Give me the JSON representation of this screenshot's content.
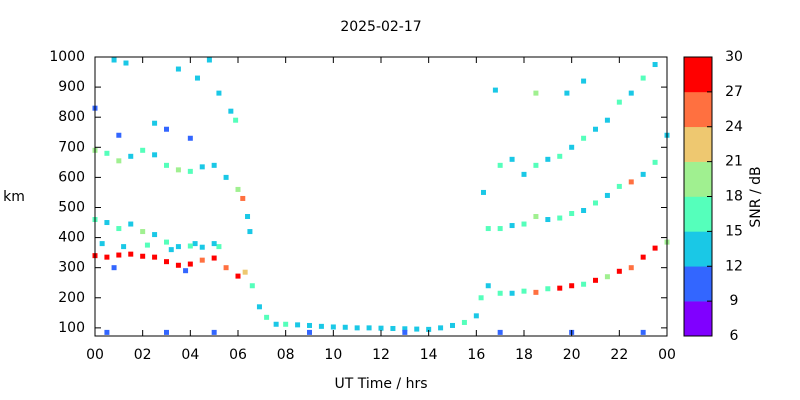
{
  "chart_data": {
    "type": "scatter",
    "title": "2025-02-17",
    "xlabel": "UT Time / hrs",
    "ylabel": "km",
    "xlim": [
      0,
      24
    ],
    "xticks": [
      {
        "value": 0,
        "label": "00"
      },
      {
        "value": 2,
        "label": "02"
      },
      {
        "value": 4,
        "label": "04"
      },
      {
        "value": 6,
        "label": "06"
      },
      {
        "value": 8,
        "label": "08"
      },
      10,
      12,
      14,
      16,
      18,
      20,
      22,
      {
        "value": 24,
        "label": "00"
      }
    ],
    "ylim": [
      73,
      1000
    ],
    "yticks": [
      100,
      200,
      300,
      400,
      500,
      600,
      700,
      800,
      900,
      1000
    ],
    "colorbar": {
      "label": "SNR / dB",
      "lim": [
        6,
        30
      ],
      "ticks": [
        6,
        9,
        12,
        15,
        18,
        21,
        24,
        27,
        30
      ],
      "colors": [
        "#8000ff",
        "#3366ff",
        "#1ac8e6",
        "#55ffbb",
        "#a0f090",
        "#eec870",
        "#ff7040",
        "#ff0000"
      ]
    },
    "x": [
      0,
      0.5,
      1,
      1.5,
      2,
      2.5,
      3,
      3.5,
      4,
      4.5,
      5,
      5.5,
      6,
      6.3,
      6.6,
      6.9,
      7.2,
      7.6,
      0.3,
      1.2,
      2.2,
      3.2,
      4.2,
      5.2,
      0.8,
      3.8,
      0,
      0.5,
      1,
      1.5,
      2,
      2.5,
      3,
      3.5,
      4,
      4.5,
      5,
      0,
      0.5,
      1,
      1.5,
      2,
      2.5,
      3,
      3.5,
      4,
      4.5,
      5,
      5.5,
      6,
      6.2,
      6.5,
      6.4,
      0.8,
      1.3,
      2.5,
      3,
      3.5,
      4.3,
      4.8,
      5.2,
      5.7,
      5.9,
      4,
      1,
      0,
      8,
      8.5,
      9,
      9.5,
      10,
      10.5,
      11,
      11.5,
      12,
      12.5,
      13,
      13.5,
      14,
      14.5,
      15,
      15.5,
      0.5,
      3,
      5,
      9,
      13,
      17,
      20,
      23,
      16,
      16.2,
      16.5,
      17,
      17.5,
      18,
      18.5,
      19,
      19.5,
      20,
      20.5,
      21,
      21.5,
      22,
      22.5,
      23,
      23.5,
      24,
      16.3,
      16.5,
      17,
      17.5,
      18,
      18.5,
      19,
      19.5,
      20,
      20.5,
      21,
      21.5,
      22,
      22.5,
      23,
      23.5,
      24,
      16.8,
      17,
      17.5,
      18,
      18.5,
      19,
      19.5,
      20,
      20.5,
      21,
      21.5,
      22,
      22.5,
      23,
      23.5,
      18.5,
      19.8,
      20.5
    ],
    "y": [
      340,
      335,
      342,
      345,
      338,
      335,
      320,
      308,
      312,
      325,
      332,
      300,
      272,
      285,
      240,
      170,
      135,
      112,
      380,
      370,
      375,
      360,
      380,
      370,
      300,
      290,
      460,
      450,
      430,
      445,
      420,
      410,
      385,
      370,
      372,
      368,
      380,
      690,
      680,
      655,
      670,
      690,
      675,
      640,
      625,
      620,
      635,
      640,
      600,
      560,
      530,
      420,
      470,
      990,
      980,
      780,
      760,
      960,
      930,
      990,
      880,
      820,
      790,
      730,
      740,
      830,
      112,
      110,
      108,
      105,
      103,
      102,
      100,
      100,
      99,
      98,
      97,
      96,
      95,
      100,
      108,
      118,
      85,
      85,
      85,
      85,
      85,
      85,
      85,
      85,
      140,
      200,
      240,
      215,
      215,
      222,
      218,
      230,
      232,
      240,
      245,
      258,
      270,
      288,
      300,
      335,
      365,
      385,
      550,
      430,
      430,
      440,
      445,
      470,
      460,
      465,
      480,
      490,
      515,
      540,
      570,
      585,
      610,
      650,
      740,
      890,
      640,
      660,
      610,
      640,
      660,
      670,
      700,
      730,
      760,
      790,
      850,
      880,
      930,
      975,
      880,
      880,
      920
    ],
    "snr": [
      28,
      28,
      27,
      28,
      28,
      27,
      28,
      28,
      27,
      24,
      28,
      24,
      28,
      21,
      15,
      12,
      15,
      12,
      12,
      12,
      15,
      12,
      12,
      15,
      9,
      9,
      15,
      12,
      15,
      12,
      18,
      12,
      15,
      12,
      15,
      12,
      12,
      18,
      15,
      18,
      12,
      15,
      12,
      15,
      18,
      15,
      12,
      12,
      12,
      18,
      24,
      12,
      12,
      12,
      12,
      12,
      9,
      12,
      12,
      12,
      12,
      12,
      15,
      9,
      9,
      9,
      15,
      12,
      12,
      12,
      12,
      12,
      12,
      12,
      12,
      12,
      12,
      12,
      12,
      12,
      12,
      15,
      9,
      9,
      9,
      9,
      9,
      9,
      9,
      9,
      12,
      15,
      12,
      15,
      12,
      15,
      24,
      15,
      27,
      27,
      15,
      27,
      18,
      27,
      24,
      28,
      28,
      18,
      12,
      15,
      15,
      12,
      15,
      18,
      12,
      15,
      15,
      12,
      15,
      12,
      15,
      24,
      12,
      15,
      12,
      12,
      15,
      12,
      12,
      15,
      12,
      15,
      12,
      15,
      12,
      12,
      15,
      12,
      15,
      12,
      18,
      12,
      12
    ]
  }
}
